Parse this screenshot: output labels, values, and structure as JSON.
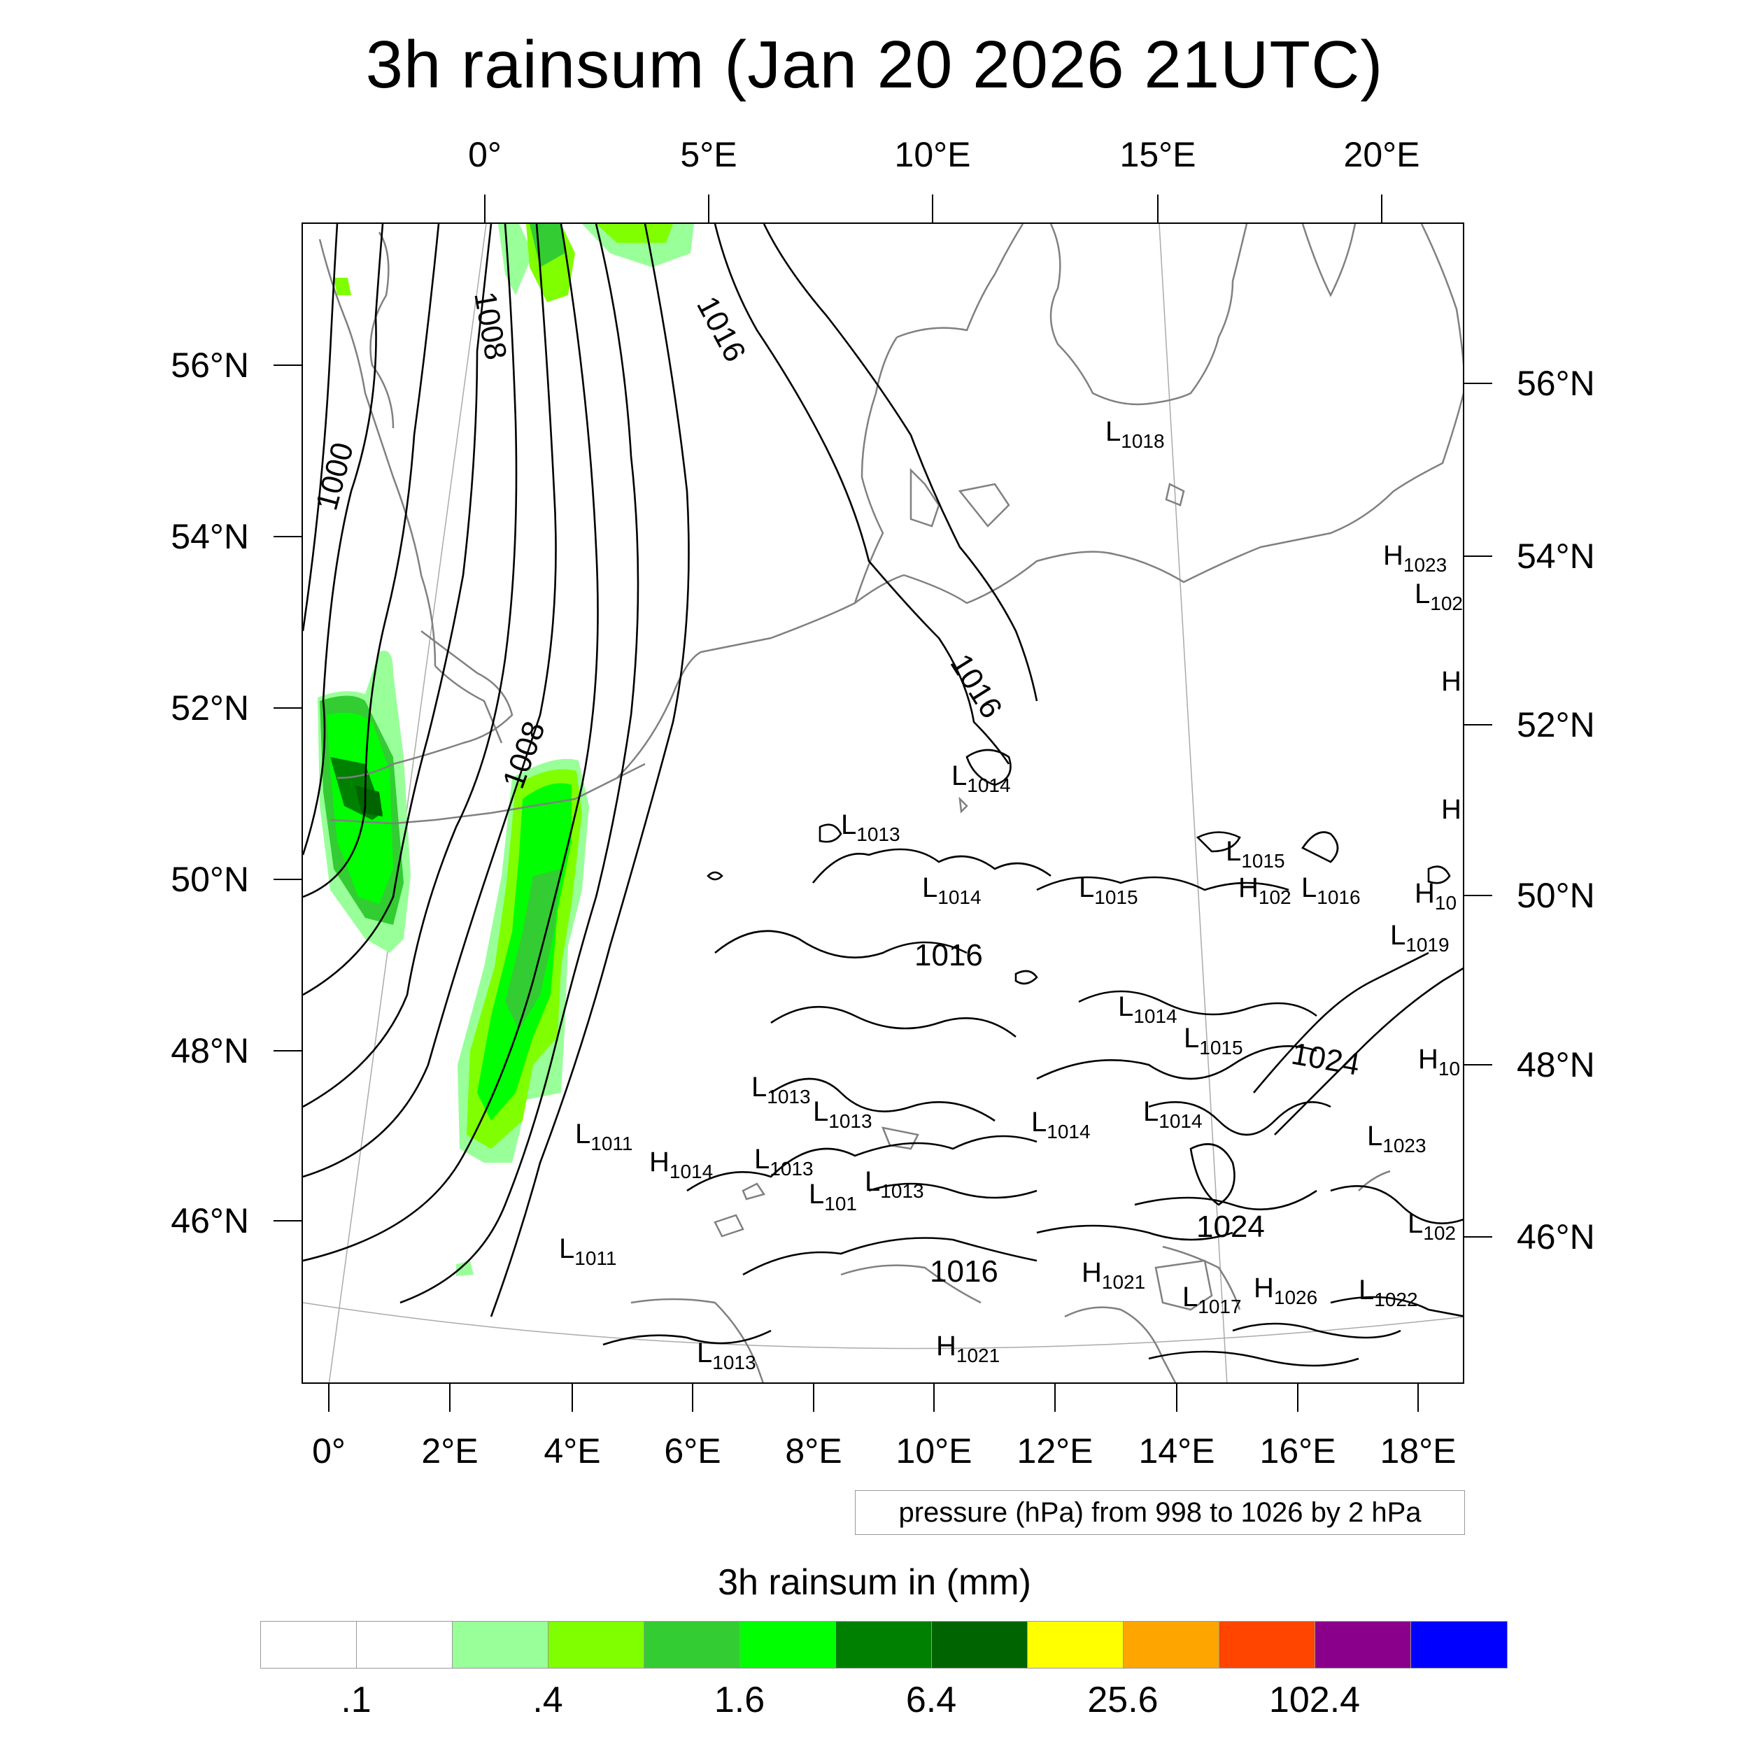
{
  "title": "3h rainsum (Jan 20 2026 21UTC)",
  "map": {
    "top_lon_labels": [
      "0°",
      "5°E",
      "10°E",
      "15°E",
      "20°E"
    ],
    "bottom_lon_labels": [
      "0°",
      "2°E",
      "4°E",
      "6°E",
      "8°E",
      "10°E",
      "12°E",
      "14°E",
      "16°E",
      "18°E"
    ],
    "left_lat_labels": [
      "56°N",
      "54°N",
      "52°N",
      "50°N",
      "48°N",
      "46°N"
    ],
    "right_lat_labels": [
      "56°N",
      "54°N",
      "52°N",
      "50°N",
      "48°N",
      "46°N"
    ],
    "isobar_labels": [
      "1000",
      "1008",
      "1016",
      "1008",
      "1016",
      "1016",
      "1024",
      "1024",
      "1016"
    ],
    "pressure_centers": [
      {
        "type": "L",
        "value": "1018"
      },
      {
        "type": "H",
        "value": "1023"
      },
      {
        "type": "L",
        "value": "102"
      },
      {
        "type": "H",
        "value": ""
      },
      {
        "type": "H",
        "value": ""
      },
      {
        "type": "L",
        "value": "1014"
      },
      {
        "type": "L",
        "value": "1013"
      },
      {
        "type": "L",
        "value": "1015"
      },
      {
        "type": "H",
        "value": "102"
      },
      {
        "type": "L",
        "value": "1016"
      },
      {
        "type": "H",
        "value": "10"
      },
      {
        "type": "L",
        "value": "1014"
      },
      {
        "type": "L",
        "value": "1015"
      },
      {
        "type": "L",
        "value": "1019"
      },
      {
        "type": "L",
        "value": "1014"
      },
      {
        "type": "L",
        "value": "1015"
      },
      {
        "type": "H",
        "value": "10"
      },
      {
        "type": "L",
        "value": "1013"
      },
      {
        "type": "L",
        "value": "1013"
      },
      {
        "type": "L",
        "value": "1014"
      },
      {
        "type": "L",
        "value": "1014"
      },
      {
        "type": "L",
        "value": "1011"
      },
      {
        "type": "H",
        "value": "1014"
      },
      {
        "type": "L",
        "value": "1013"
      },
      {
        "type": "L",
        "value": "101"
      },
      {
        "type": "L",
        "value": "1013"
      },
      {
        "type": "L",
        "value": "1023"
      },
      {
        "type": "L",
        "value": "102"
      },
      {
        "type": "L",
        "value": "1011"
      },
      {
        "type": "H",
        "value": "1021"
      },
      {
        "type": "L",
        "value": "1017"
      },
      {
        "type": "H",
        "value": "1026"
      },
      {
        "type": "L",
        "value": "1022"
      },
      {
        "type": "L",
        "value": "1013"
      },
      {
        "type": "H",
        "value": "1021"
      }
    ]
  },
  "contour_note": "pressure (hPa) from 998 to 1026 by 2 hPa",
  "colorbar": {
    "title": "3h rainsum in (mm)",
    "colors": [
      "#ffffff",
      "#ffffff",
      "#99ff99",
      "#80ff00",
      "#33cc33",
      "#00ff00",
      "#008000",
      "#006400",
      "#ffff00",
      "#ffa500",
      "#ff4500",
      "#8b008b",
      "#0000ff"
    ],
    "labels": [
      ".1",
      ".4",
      "1.6",
      "6.4",
      "25.6",
      "102.4"
    ]
  }
}
